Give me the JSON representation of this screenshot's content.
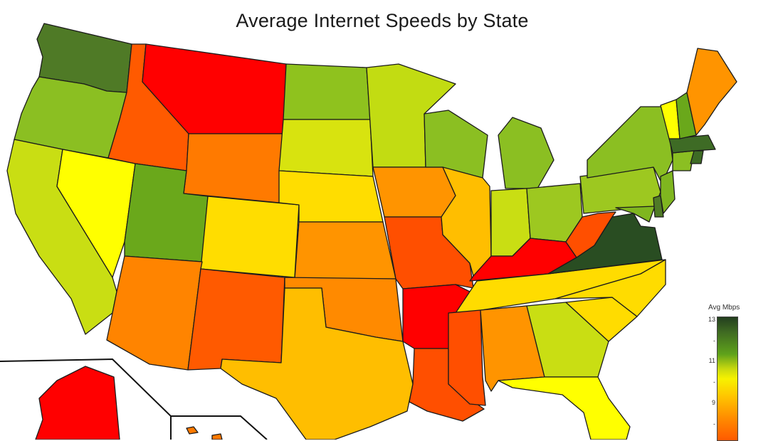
{
  "title": "Average Internet Speeds by State",
  "legend": {
    "title": "Avg Mbps",
    "ticks": [
      "13",
      "-",
      "11",
      "-",
      "9",
      "-"
    ]
  },
  "colors": {
    "dark_green": "#294d22",
    "green": "#4f7a26",
    "mid_green": "#6fa91d",
    "light_green": "#9dc820",
    "yellow_green": "#c9de13",
    "yellow": "#ffff00",
    "gold": "#ffdc00",
    "amber": "#ffbe00",
    "orange": "#ff9400",
    "dark_orange": "#ff7100",
    "red_orange": "#ff4f00",
    "red": "#ff0000"
  },
  "states": [
    {
      "name": "Washington",
      "color": "#4f7a26"
    },
    {
      "name": "Oregon",
      "color": "#8bbf22"
    },
    {
      "name": "California",
      "color": "#c9de13"
    },
    {
      "name": "Nevada",
      "color": "#ffff00"
    },
    {
      "name": "Idaho",
      "color": "#ff5a00"
    },
    {
      "name": "Montana",
      "color": "#ff0000"
    },
    {
      "name": "Wyoming",
      "color": "#ff7a00"
    },
    {
      "name": "Utah",
      "color": "#6aa81b"
    },
    {
      "name": "Colorado",
      "color": "#ffdd00"
    },
    {
      "name": "Arizona",
      "color": "#ff8400"
    },
    {
      "name": "New Mexico",
      "color": "#ff5a00"
    },
    {
      "name": "North Dakota",
      "color": "#8fc21e"
    },
    {
      "name": "South Dakota",
      "color": "#d8e30f"
    },
    {
      "name": "Nebraska",
      "color": "#ffdd00"
    },
    {
      "name": "Kansas",
      "color": "#ff9400"
    },
    {
      "name": "Oklahoma",
      "color": "#ff8a00"
    },
    {
      "name": "Texas",
      "color": "#ffbe00"
    },
    {
      "name": "Minnesota",
      "color": "#c2dc12"
    },
    {
      "name": "Iowa",
      "color": "#ff9400"
    },
    {
      "name": "Missouri",
      "color": "#ff4f00"
    },
    {
      "name": "Arkansas",
      "color": "#ff0000"
    },
    {
      "name": "Louisiana",
      "color": "#ff4f00"
    },
    {
      "name": "Wisconsin",
      "color": "#8bbf22"
    },
    {
      "name": "Illinois",
      "color": "#ffbe00"
    },
    {
      "name": "Michigan",
      "color": "#8bbf22"
    },
    {
      "name": "Indiana",
      "color": "#c9de13"
    },
    {
      "name": "Ohio",
      "color": "#9dc820"
    },
    {
      "name": "Kentucky",
      "color": "#ff0000"
    },
    {
      "name": "Tennessee",
      "color": "#ffdc00"
    },
    {
      "name": "Mississippi",
      "color": "#ff4f00"
    },
    {
      "name": "Alabama",
      "color": "#ff9400"
    },
    {
      "name": "Georgia",
      "color": "#c9de13"
    },
    {
      "name": "Florida",
      "color": "#ffff00"
    },
    {
      "name": "South Carolina",
      "color": "#ffdc00"
    },
    {
      "name": "North Carolina",
      "color": "#ffdc00"
    },
    {
      "name": "Virginia",
      "color": "#294d22"
    },
    {
      "name": "West Virginia",
      "color": "#ff4f00"
    },
    {
      "name": "Pennsylvania",
      "color": "#9dc820"
    },
    {
      "name": "New York",
      "color": "#8bbf22"
    },
    {
      "name": "Maryland",
      "color": "#7fb61f"
    },
    {
      "name": "Delaware",
      "color": "#4f7a26"
    },
    {
      "name": "New Jersey",
      "color": "#7fb61f"
    },
    {
      "name": "Connecticut",
      "color": "#8bbf22"
    },
    {
      "name": "Rhode Island",
      "color": "#3e6b25"
    },
    {
      "name": "Massachusetts",
      "color": "#3e6b25"
    },
    {
      "name": "Vermont",
      "color": "#ffff00"
    },
    {
      "name": "New Hampshire",
      "color": "#6aa81b"
    },
    {
      "name": "Maine",
      "color": "#ff9400"
    },
    {
      "name": "Alaska",
      "color": "#ff0000"
    },
    {
      "name": "Hawaii",
      "color": "#ff7a00"
    }
  ]
}
